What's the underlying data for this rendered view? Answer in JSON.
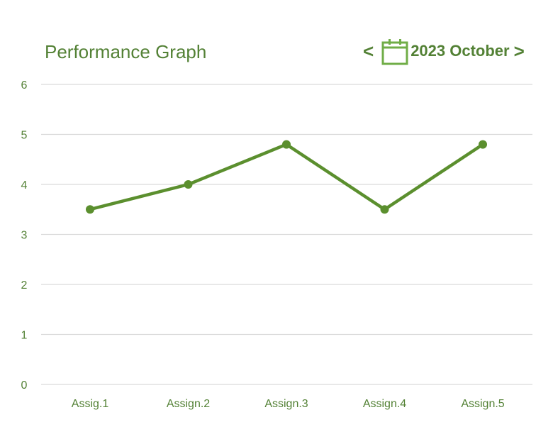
{
  "header": {
    "title": "Performance Graph",
    "period": {
      "prev_symbol": "<",
      "next_symbol": ">",
      "label": "2023 October",
      "icon": "calendar-icon"
    }
  },
  "colors": {
    "accent": "#538135",
    "line": "#5b8f2e",
    "grid": "#d9d9d9"
  },
  "chart_data": {
    "type": "line",
    "title": "Performance Graph",
    "categories": [
      "Assig.1",
      "Assign.2",
      "Assign.3",
      "Assign.4",
      "Assign.5"
    ],
    "series": [
      {
        "values": [
          3.5,
          4,
          4.8,
          3.5,
          4.8
        ]
      }
    ],
    "ylim": [
      0,
      6
    ],
    "yticks": [
      0,
      1,
      2,
      3,
      4,
      5,
      6
    ],
    "grid": true,
    "markers": true
  }
}
